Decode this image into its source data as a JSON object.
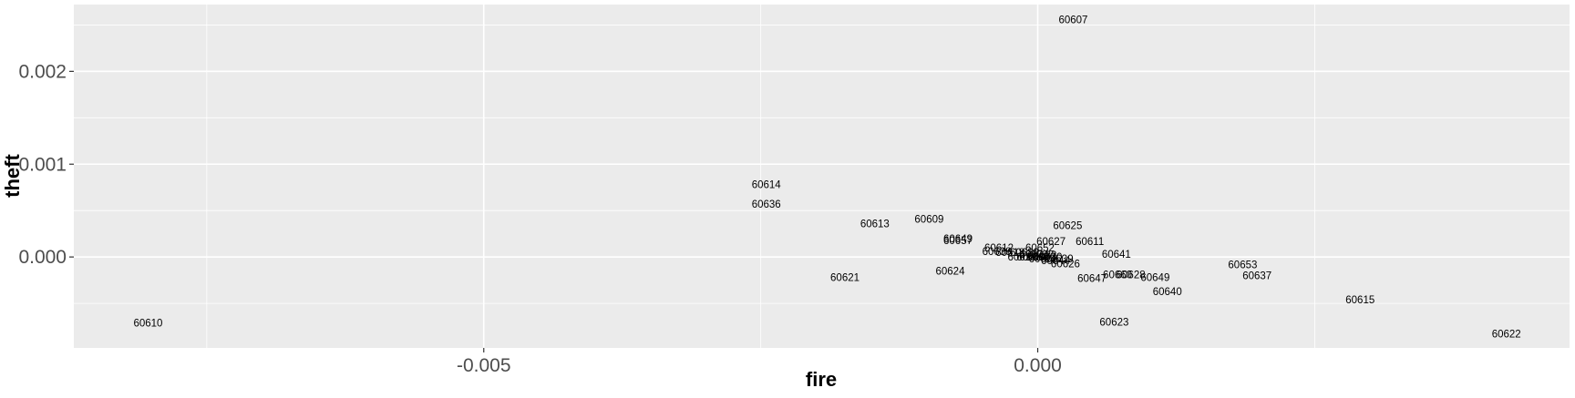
{
  "chart_data": {
    "type": "scatter",
    "title": "",
    "xlabel": "fire",
    "ylabel": "theft",
    "xlim": [
      -0.0087,
      0.0048
    ],
    "ylim": [
      -0.00098,
      0.00272
    ],
    "x_ticks": [
      -0.005,
      0.0
    ],
    "x_tick_labels": [
      "-0.005",
      "0.000"
    ],
    "y_ticks": [
      0.0,
      0.001,
      0.002
    ],
    "y_tick_labels": [
      "0.000",
      "0.001",
      "0.002"
    ],
    "grid": true,
    "legend": "none",
    "marker": "text-label",
    "colors": {
      "panel_background": "#EBEBEB",
      "grid": "#FFFFFF",
      "label_text": "#000000",
      "tick_text": "#4D4D4D"
    },
    "points": [
      {
        "label": "60607",
        "x": 0.00032,
        "y": 0.00256
      },
      {
        "label": "60614",
        "x": -0.00245,
        "y": 0.00078
      },
      {
        "label": "60636",
        "x": -0.00245,
        "y": 0.00057
      },
      {
        "label": "60613",
        "x": -0.00147,
        "y": 0.00036
      },
      {
        "label": "60609",
        "x": -0.00098,
        "y": 0.00041
      },
      {
        "label": "60625",
        "x": 0.00027,
        "y": 0.00034
      },
      {
        "label": "60649",
        "x": -0.00072,
        "y": 0.0002
      },
      {
        "label": "60657",
        "x": -0.00072,
        "y": 0.00018
      },
      {
        "label": "60627",
        "x": 0.00012,
        "y": 0.00017
      },
      {
        "label": "60611",
        "x": 0.00047,
        "y": 0.00017
      },
      {
        "label": "60612",
        "x": -0.00035,
        "y": 0.0001
      },
      {
        "label": "60652",
        "x": 2e-05,
        "y": 0.0001
      },
      {
        "label": "60638",
        "x": -0.00037,
        "y": 6e-05
      },
      {
        "label": "60618",
        "x": -0.00025,
        "y": 5e-05
      },
      {
        "label": "60629",
        "x": -0.00012,
        "y": 5e-05
      },
      {
        "label": "60634",
        "x": -3e-05,
        "y": 3e-05
      },
      {
        "label": "60632",
        "x": 4e-05,
        "y": 2e-05
      },
      {
        "label": "60617",
        "x": -0.00014,
        "y": 0.0
      },
      {
        "label": "60619",
        "x": -6e-05,
        "y": 0.0
      },
      {
        "label": "60620",
        "x": 3e-05,
        "y": 0.0
      },
      {
        "label": "60630",
        "x": 9e-05,
        "y": 0.0
      },
      {
        "label": "60639",
        "x": 0.00019,
        "y": -2e-05
      },
      {
        "label": "60608",
        "x": 5e-05,
        "y": -2e-05
      },
      {
        "label": "60644",
        "x": 0.00016,
        "y": -4e-05
      },
      {
        "label": "60626",
        "x": 0.00025,
        "y": -7e-05
      },
      {
        "label": "60641",
        "x": 0.00071,
        "y": 3e-05
      },
      {
        "label": "60653",
        "x": 0.00185,
        "y": -8e-05
      },
      {
        "label": "60637",
        "x": 0.00198,
        "y": -0.0002
      },
      {
        "label": "60621",
        "x": -0.00174,
        "y": -0.00022
      },
      {
        "label": "60624",
        "x": -0.00079,
        "y": -0.00015
      },
      {
        "label": "60647",
        "x": 0.00049,
        "y": -0.00023
      },
      {
        "label": "60660",
        "x": 0.00072,
        "y": -0.00019
      },
      {
        "label": "60628",
        "x": 0.00084,
        "y": -0.00019
      },
      {
        "label": "60649",
        "x": 0.00106,
        "y": -0.00022
      },
      {
        "label": "60640",
        "x": 0.00117,
        "y": -0.00037
      },
      {
        "label": "60615",
        "x": 0.00291,
        "y": -0.00046
      },
      {
        "label": "60610",
        "x": -0.00803,
        "y": -0.00071
      },
      {
        "label": "60623",
        "x": 0.00069,
        "y": -0.0007
      },
      {
        "label": "60622",
        "x": 0.00423,
        "y": -0.00083
      }
    ]
  }
}
